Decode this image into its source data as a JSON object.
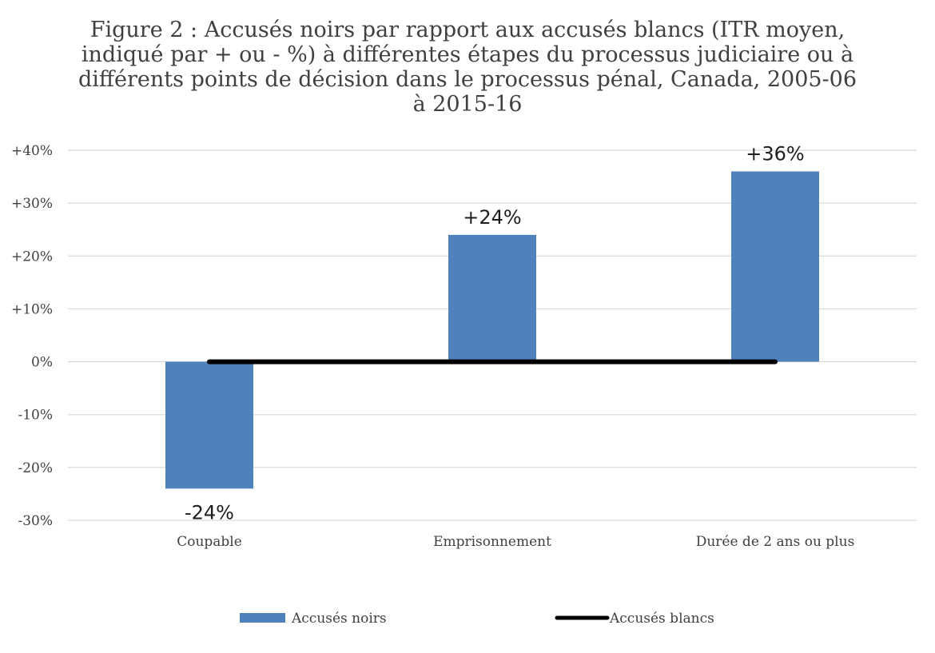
{
  "chart_data": {
    "type": "bar",
    "title_lines": [
      "Figure 2 :  Accusés noirs par rapport aux accusés blancs (ITR moyen,",
      "indiqué par + ou - %) à différentes étapes du processus judiciaire ou à",
      "différents points de décision dans le processus pénal, Canada, 2005-06",
      "à 2015-16"
    ],
    "categories": [
      "Coupable",
      "Emprisonnement",
      "Durée de 2 ans ou plus"
    ],
    "series": [
      {
        "name": "Accusés noirs",
        "kind": "bar",
        "color": "#4f81bd",
        "values": [
          -24,
          24,
          36
        ],
        "data_labels": [
          "-24%",
          "+24%",
          "+36%"
        ]
      },
      {
        "name": "Accusés blancs",
        "kind": "line",
        "color": "#000000",
        "values": [
          0,
          0,
          0
        ]
      }
    ],
    "ylim": [
      -30,
      40
    ],
    "y_ticks": [
      40,
      30,
      20,
      10,
      0,
      -10,
      -20,
      -30
    ],
    "y_tick_labels": [
      "+40%",
      "+30%",
      "+20%",
      "+10%",
      "0%",
      "-10%",
      "-20%",
      "-30%"
    ],
    "xlabel": "",
    "ylabel": "",
    "grid": true,
    "legend_position": "bottom"
  }
}
